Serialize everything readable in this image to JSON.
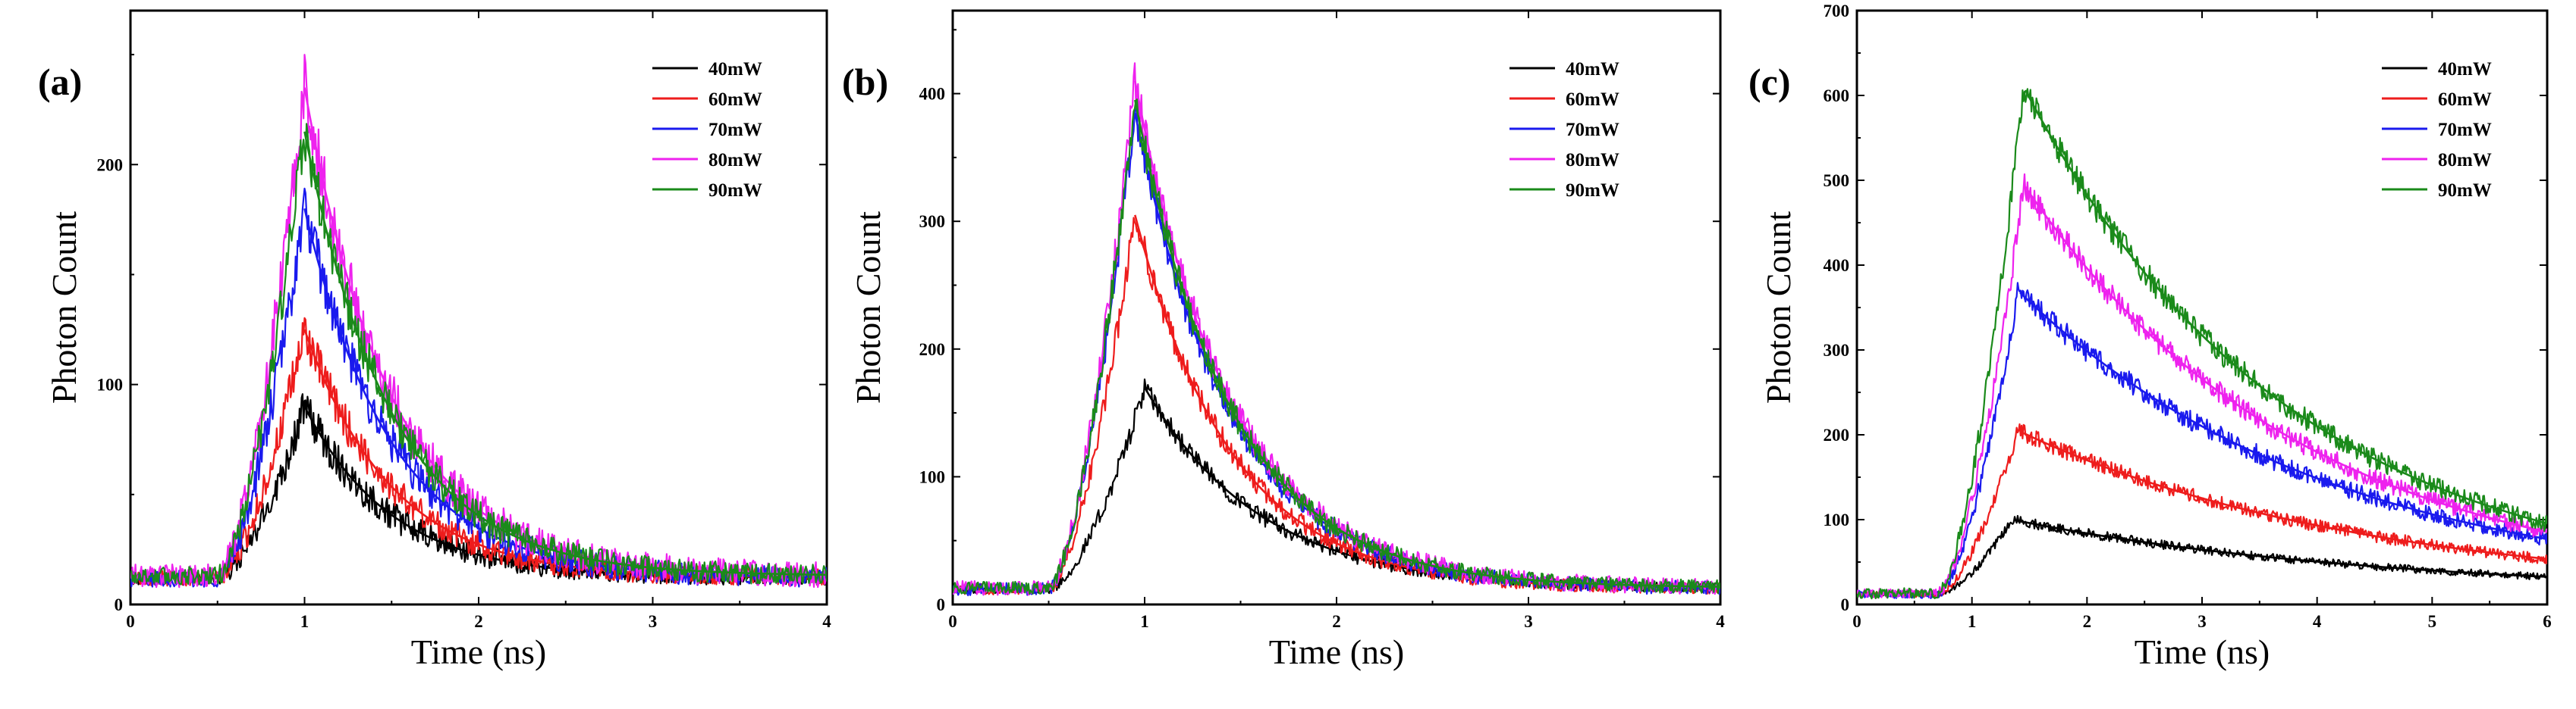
{
  "colors": {
    "40mW": "#000000",
    "60mW": "#ee1c1c",
    "70mW": "#1a1aee",
    "80mW": "#ee22ee",
    "90mW": "#1a8a1a"
  },
  "chart_data": [
    {
      "type": "line",
      "panel_label": "(a)",
      "xlabel": "Time (ns)",
      "ylabel": "Photon Count",
      "xlim": [
        0,
        4
      ],
      "ylim": [
        0,
        270
      ],
      "xticks": [
        0,
        1,
        2,
        3,
        4
      ],
      "xtick_labels": [
        "0",
        "1",
        "2",
        "3",
        "4"
      ],
      "yticks": [
        0,
        100,
        200
      ],
      "ytick_labels": [
        "0",
        "100",
        "200"
      ],
      "legend_position": "top-right",
      "series": [
        {
          "name": "40mW",
          "color_key": "40mW",
          "baseline": 12,
          "peak": 90,
          "rise_start": 0.5,
          "peak_time": 1.0,
          "tau": 0.5,
          "noise": 9,
          "fit_start": 1.0
        },
        {
          "name": "60mW",
          "color_key": "60mW",
          "baseline": 12,
          "peak": 125,
          "rise_start": 0.5,
          "peak_time": 1.0,
          "tau": 0.5,
          "noise": 10,
          "fit_start": 1.0
        },
        {
          "name": "70mW",
          "color_key": "70mW",
          "baseline": 12,
          "peak": 180,
          "rise_start": 0.5,
          "peak_time": 1.0,
          "tau": 0.5,
          "noise": 12,
          "fit_start": 1.0
        },
        {
          "name": "80mW",
          "color_key": "80mW",
          "baseline": 13,
          "peak": 235,
          "rise_start": 0.5,
          "peak_time": 1.0,
          "tau": 0.5,
          "noise": 15,
          "fit_start": 1.0
        },
        {
          "name": "90mW",
          "color_key": "90mW",
          "baseline": 13,
          "peak": 215,
          "rise_start": 0.5,
          "peak_time": 1.0,
          "tau": 0.5,
          "noise": 12,
          "fit_start": 1.0
        }
      ]
    },
    {
      "type": "line",
      "panel_label": "(b)",
      "xlabel": "Time (ns)",
      "ylabel": "Photon Count",
      "xlim": [
        0,
        4
      ],
      "ylim": [
        0,
        465
      ],
      "xticks": [
        0,
        1,
        2,
        3,
        4
      ],
      "xtick_labels": [
        "0",
        "1",
        "2",
        "3",
        "4"
      ],
      "yticks": [
        0,
        100,
        200,
        300,
        400
      ],
      "ytick_labels": [
        "0",
        "100",
        "200",
        "300",
        "400"
      ],
      "legend_position": "top-right",
      "series": [
        {
          "name": "40mW",
          "color_key": "40mW",
          "baseline": 12,
          "peak": 170,
          "rise_start": 0.5,
          "peak_time": 1.0,
          "tau": 0.6,
          "noise": 9,
          "fit_start": 1.0
        },
        {
          "name": "60mW",
          "color_key": "60mW",
          "baseline": 12,
          "peak": 305,
          "rise_start": 0.5,
          "peak_time": 0.95,
          "tau": 0.5,
          "noise": 12,
          "fit_start": 0.95
        },
        {
          "name": "70mW",
          "color_key": "70mW",
          "baseline": 12,
          "peak": 385,
          "rise_start": 0.5,
          "peak_time": 0.95,
          "tau": 0.5,
          "noise": 14,
          "fit_start": 0.95
        },
        {
          "name": "80mW",
          "color_key": "80mW",
          "baseline": 13,
          "peak": 410,
          "rise_start": 0.5,
          "peak_time": 0.95,
          "tau": 0.5,
          "noise": 16,
          "fit_start": 0.95
        },
        {
          "name": "90mW",
          "color_key": "90mW",
          "baseline": 13,
          "peak": 395,
          "rise_start": 0.5,
          "peak_time": 0.95,
          "tau": 0.5,
          "noise": 14,
          "fit_start": 0.95
        }
      ]
    },
    {
      "type": "line",
      "panel_label": "(c)",
      "xlabel": "Time (ns)",
      "ylabel": "Photon Count",
      "xlim": [
        0,
        6
      ],
      "ylim": [
        0,
        700
      ],
      "xticks": [
        0,
        1,
        2,
        3,
        4,
        5,
        6
      ],
      "xtick_labels": [
        "0",
        "1",
        "2",
        "3",
        "4",
        "5",
        "6"
      ],
      "yticks": [
        0,
        100,
        200,
        300,
        400,
        500,
        600,
        700
      ],
      "ytick_labels": [
        "0",
        "100",
        "200",
        "300",
        "400",
        "500",
        "600",
        "700"
      ],
      "legend_position": "top-right",
      "series": [
        {
          "name": "40mW",
          "color_key": "40mW",
          "baseline": 12,
          "peak": 100,
          "rise_start": 0.7,
          "peak_time": 1.35,
          "tau": 3.2,
          "noise": 6,
          "fit_start": 1.3
        },
        {
          "name": "60mW",
          "color_key": "60mW",
          "baseline": 12,
          "peak": 205,
          "rise_start": 0.7,
          "peak_time": 1.4,
          "tau": 3.0,
          "noise": 10,
          "fit_start": 1.3
        },
        {
          "name": "70mW",
          "color_key": "70mW",
          "baseline": 12,
          "peak": 370,
          "rise_start": 0.7,
          "peak_time": 1.4,
          "tau": 2.7,
          "noise": 14,
          "fit_start": 1.3
        },
        {
          "name": "80mW",
          "color_key": "80mW",
          "baseline": 13,
          "peak": 495,
          "rise_start": 0.7,
          "peak_time": 1.45,
          "tau": 2.4,
          "noise": 16,
          "fit_start": 1.3
        },
        {
          "name": "90mW",
          "color_key": "90mW",
          "baseline": 13,
          "peak": 610,
          "rise_start": 0.7,
          "peak_time": 1.45,
          "tau": 2.3,
          "noise": 18,
          "fit_start": 1.3
        }
      ]
    }
  ]
}
